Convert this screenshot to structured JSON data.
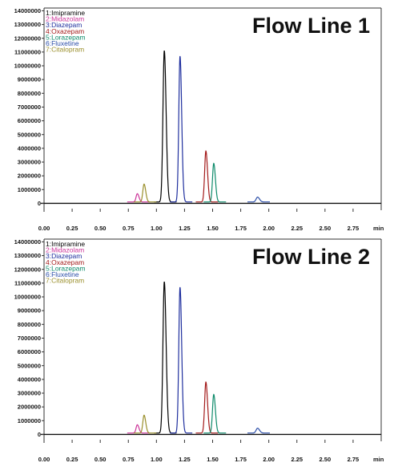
{
  "chart_data": [
    {
      "type": "line",
      "title": "Flow Line 1",
      "xlabel": "min",
      "ylabel": "",
      "xlim": [
        0.0,
        3.0
      ],
      "ylim": [
        -500000,
        14200000
      ],
      "x_ticks": [
        "0.00",
        "0.25",
        "0.50",
        "0.75",
        "1.00",
        "1.25",
        "1.50",
        "1.75",
        "2.00",
        "2.25",
        "2.50",
        "2.75"
      ],
      "y_ticks": [
        "0",
        "1000000",
        "2000000",
        "3000000",
        "4000000",
        "5000000",
        "6000000",
        "7000000",
        "8000000",
        "9000000",
        "10000000",
        "11000000",
        "12000000",
        "13000000",
        "14000000"
      ],
      "grid": false,
      "legend": "top-left",
      "baseline": 100000,
      "series": [
        {
          "name": "1:Imipramine",
          "color": "#000000",
          "peak_time": 1.07,
          "peak_height": 11000000,
          "width": 0.012
        },
        {
          "name": "2:Midazolam",
          "color": "#cc3399",
          "peak_time": 0.83,
          "peak_height": 600000,
          "width": 0.011
        },
        {
          "name": "3:Diazepam",
          "color": "#1f2f9e",
          "peak_time": 1.21,
          "peak_height": 10600000,
          "width": 0.011
        },
        {
          "name": "4:Oxazepam",
          "color": "#a31a1a",
          "peak_time": 1.44,
          "peak_height": 3700000,
          "width": 0.011
        },
        {
          "name": "5:Lorazepam",
          "color": "#0d8a6a",
          "peak_time": 1.51,
          "peak_height": 2800000,
          "width": 0.011
        },
        {
          "name": "6:Fluxetine",
          "color": "#2a4da8",
          "peak_time": 1.9,
          "peak_height": 350000,
          "width": 0.013
        },
        {
          "name": "7:Citalopram",
          "color": "#9a8f2c",
          "peak_time": 0.89,
          "peak_height": 1300000,
          "width": 0.011
        }
      ]
    },
    {
      "type": "line",
      "title": "Flow Line 2",
      "xlabel": "min",
      "ylabel": "",
      "xlim": [
        0.0,
        3.0
      ],
      "ylim": [
        -500000,
        14200000
      ],
      "x_ticks": [
        "0.00",
        "0.25",
        "0.50",
        "0.75",
        "1.00",
        "1.25",
        "1.50",
        "1.75",
        "2.00",
        "2.25",
        "2.50",
        "2.75"
      ],
      "y_ticks": [
        "0",
        "1000000",
        "2000000",
        "3000000",
        "4000000",
        "5000000",
        "6000000",
        "7000000",
        "8000000",
        "9000000",
        "10000000",
        "11000000",
        "12000000",
        "13000000",
        "14000000"
      ],
      "grid": false,
      "legend": "top-left",
      "baseline": 100000,
      "series": [
        {
          "name": "1:Imipramine",
          "color": "#000000",
          "peak_time": 1.07,
          "peak_height": 11000000,
          "width": 0.012
        },
        {
          "name": "2:Midazolam",
          "color": "#cc3399",
          "peak_time": 0.83,
          "peak_height": 600000,
          "width": 0.011
        },
        {
          "name": "3:Diazepam",
          "color": "#1f2f9e",
          "peak_time": 1.21,
          "peak_height": 10600000,
          "width": 0.011
        },
        {
          "name": "4:Oxazepam",
          "color": "#a31a1a",
          "peak_time": 1.44,
          "peak_height": 3700000,
          "width": 0.011
        },
        {
          "name": "5:Lorazepam",
          "color": "#0d8a6a",
          "peak_time": 1.51,
          "peak_height": 2800000,
          "width": 0.011
        },
        {
          "name": "6:Fluxetine",
          "color": "#2a4da8",
          "peak_time": 1.9,
          "peak_height": 350000,
          "width": 0.013
        },
        {
          "name": "7:Citalopram",
          "color": "#9a8f2c",
          "peak_time": 0.89,
          "peak_height": 1300000,
          "width": 0.011
        }
      ]
    }
  ]
}
